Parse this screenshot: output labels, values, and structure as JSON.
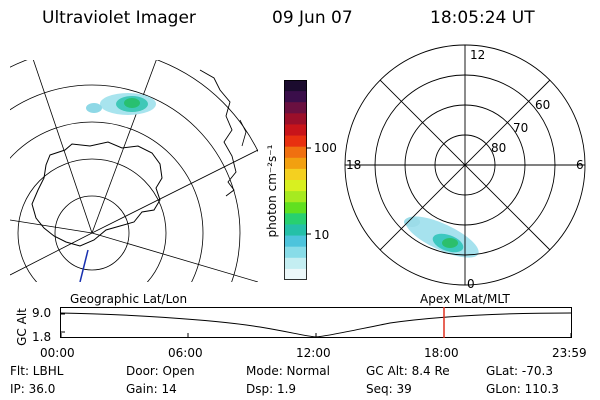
{
  "header": {
    "title": "Ultraviolet Imager",
    "date": "09 Jun 07",
    "time": "18:05:24 UT"
  },
  "colorbar": {
    "unit_label": "photon cm⁻²s⁻¹",
    "ticks": [
      "100",
      "10"
    ],
    "colors": [
      "#1b0b2e",
      "#3a0e4a",
      "#6a1040",
      "#9b0f2a",
      "#c8141a",
      "#e83010",
      "#f07010",
      "#f2a010",
      "#f4d020",
      "#d8f020",
      "#a6ea20",
      "#60e020",
      "#28d070",
      "#25c0a8",
      "#4dc4dc",
      "#88dce8",
      "#c4eef2",
      "#ecf8fa"
    ]
  },
  "right_map": {
    "lat_labels": [
      "60",
      "70",
      "80"
    ],
    "mlt_labels": {
      "top": "12",
      "left": "18",
      "right": "6",
      "bottom": "0"
    }
  },
  "altitude_strip": {
    "axis_label": "GC Alt",
    "y_ticks": [
      "9.0",
      "1.8"
    ],
    "left_title": "Geographic Lat/Lon",
    "right_title": "Apex MLat/MLT",
    "x_ticks": [
      "00:00",
      "06:00",
      "12:00",
      "18:00",
      "23:59"
    ],
    "marker_color": "#e03020"
  },
  "info": {
    "flt": "Flt: LBHL",
    "ip": "IP: 36.0",
    "door": "Door: Open",
    "gain": "Gain: 14",
    "mode": "Mode: Normal",
    "dsp": "Dsp:    1.9",
    "gc_alt": "GC Alt: 8.4 Re",
    "seq": "Seq: 39",
    "glat": "GLat: -70.3",
    "glon": "GLon: 110.3"
  }
}
